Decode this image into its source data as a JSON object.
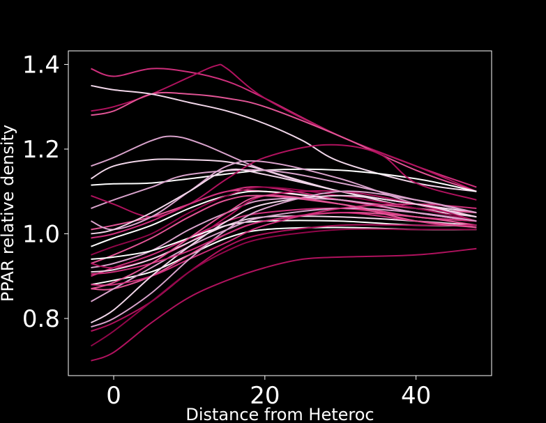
{
  "chart_data": {
    "type": "line",
    "title": "",
    "xlabel": "Distance from Heteroc",
    "ylabel": "PPAR relative density",
    "xlim": [
      -6,
      50
    ],
    "ylim": [
      0.665,
      1.432
    ],
    "xticks": [
      0,
      20,
      40
    ],
    "yticks": [
      0.8,
      1.0,
      1.2,
      1.4
    ],
    "xtick_labels": [
      "0",
      "20",
      "40"
    ],
    "ytick_labels": [
      "0.8",
      "1.0",
      "1.2",
      "1.4"
    ],
    "grid": false,
    "legend": "none",
    "colors": {
      "background": "#000000",
      "axes": "#ffffff",
      "text": "#ffffff",
      "palette": [
        "#ffffff",
        "#f2d7ea",
        "#d9a3cc",
        "#e25596",
        "#cf2f7c",
        "#b0125e",
        "#900649"
      ]
    },
    "series": [
      {
        "color": "#cf2f7c",
        "x": [
          -3,
          0,
          5,
          10,
          15,
          20,
          30,
          40,
          48
        ],
        "y": [
          1.39,
          1.372,
          1.39,
          1.382,
          1.36,
          1.32,
          1.23,
          1.16,
          1.11
        ]
      },
      {
        "color": "#b0125e",
        "x": [
          -3,
          0,
          5,
          10,
          13.5,
          15,
          20,
          30,
          40,
          48
        ],
        "y": [
          1.29,
          1.3,
          1.33,
          1.37,
          1.397,
          1.39,
          1.32,
          1.23,
          1.16,
          1.1
        ]
      },
      {
        "color": "#e25596",
        "x": [
          -3,
          0,
          5,
          10,
          15,
          20,
          30,
          40,
          48
        ],
        "y": [
          1.28,
          1.29,
          1.33,
          1.33,
          1.32,
          1.3,
          1.23,
          1.15,
          1.1
        ]
      },
      {
        "color": "#f2d7ea",
        "x": [
          -3,
          0,
          5,
          10,
          15,
          20,
          25,
          30,
          40,
          48
        ],
        "y": [
          1.35,
          1.34,
          1.33,
          1.31,
          1.29,
          1.26,
          1.22,
          1.17,
          1.12,
          1.1
        ]
      },
      {
        "color": "#d9a3cc",
        "x": [
          -3,
          0,
          5,
          8,
          12,
          20,
          30,
          40,
          48
        ],
        "y": [
          1.16,
          1.18,
          1.22,
          1.23,
          1.21,
          1.15,
          1.1,
          1.07,
          1.05
        ]
      },
      {
        "color": "#f2d7ea",
        "x": [
          -3,
          0,
          5,
          10,
          15,
          20,
          30,
          40,
          48
        ],
        "y": [
          1.13,
          1.16,
          1.175,
          1.175,
          1.17,
          1.15,
          1.1,
          1.07,
          1.05
        ]
      },
      {
        "color": "#ffffff",
        "x": [
          -3,
          0,
          5,
          10,
          20,
          30,
          40,
          48
        ],
        "y": [
          1.115,
          1.118,
          1.12,
          1.13,
          1.15,
          1.15,
          1.13,
          1.1
        ]
      },
      {
        "color": "#d9a3cc",
        "x": [
          -3,
          0,
          5,
          10,
          20,
          30,
          40,
          48
        ],
        "y": [
          1.06,
          1.08,
          1.11,
          1.14,
          1.15,
          1.12,
          1.08,
          1.05
        ]
      },
      {
        "color": "#b0125e",
        "x": [
          -3,
          0,
          5,
          10,
          15,
          20,
          28,
          35,
          40,
          48
        ],
        "y": [
          1.09,
          1.07,
          1.04,
          1.07,
          1.13,
          1.18,
          1.21,
          1.19,
          1.12,
          1.08
        ]
      },
      {
        "color": "#e25596",
        "x": [
          -3,
          0,
          5,
          10,
          15,
          20,
          30,
          40,
          48
        ],
        "y": [
          1.01,
          1.02,
          1.04,
          1.07,
          1.1,
          1.1,
          1.08,
          1.06,
          1.05
        ]
      },
      {
        "color": "#ffffff",
        "x": [
          -3,
          0,
          5,
          10,
          15,
          20,
          30,
          40,
          48
        ],
        "y": [
          0.97,
          0.99,
          1.02,
          1.06,
          1.09,
          1.1,
          1.08,
          1.05,
          1.03
        ]
      },
      {
        "color": "#d9a3cc",
        "x": [
          -3,
          0,
          5,
          10,
          15,
          20,
          30,
          40,
          48
        ],
        "y": [
          1.03,
          1.01,
          1.04,
          1.1,
          1.16,
          1.17,
          1.13,
          1.07,
          1.04
        ]
      },
      {
        "color": "#f2d7ea",
        "x": [
          -3,
          0,
          5,
          10,
          15,
          20,
          30,
          40,
          48
        ],
        "y": [
          1.0,
          1.01,
          1.05,
          1.1,
          1.15,
          1.14,
          1.1,
          1.06,
          1.04
        ]
      },
      {
        "color": "#cf2f7c",
        "x": [
          -3,
          0,
          5,
          10,
          15,
          20,
          30,
          40,
          48
        ],
        "y": [
          0.99,
          1.0,
          1.03,
          1.07,
          1.1,
          1.11,
          1.08,
          1.05,
          1.03
        ]
      },
      {
        "color": "#900649",
        "x": [
          -3,
          0,
          5,
          10,
          15,
          20,
          30,
          40,
          48
        ],
        "y": [
          0.95,
          0.97,
          1.0,
          1.05,
          1.09,
          1.11,
          1.09,
          1.06,
          1.03
        ]
      },
      {
        "color": "#e25596",
        "x": [
          -3,
          0,
          5,
          10,
          15,
          20,
          30,
          40,
          48
        ],
        "y": [
          0.93,
          0.95,
          0.99,
          1.04,
          1.08,
          1.09,
          1.07,
          1.04,
          1.03
        ]
      },
      {
        "color": "#d9a3cc",
        "x": [
          -3,
          0,
          5,
          10,
          15,
          20,
          30,
          40,
          48
        ],
        "y": [
          0.92,
          0.93,
          0.96,
          1.01,
          1.05,
          1.08,
          1.08,
          1.05,
          1.03
        ]
      },
      {
        "color": "#cf2f7c",
        "x": [
          -3,
          0,
          5,
          10,
          15,
          20,
          30,
          40,
          48
        ],
        "y": [
          0.9,
          0.92,
          0.95,
          0.99,
          1.03,
          1.05,
          1.06,
          1.04,
          1.03
        ]
      },
      {
        "color": "#b0125e",
        "x": [
          -3,
          0,
          5,
          10,
          15,
          20,
          30,
          40,
          48
        ],
        "y": [
          0.93,
          0.92,
          0.94,
          0.98,
          1.04,
          1.09,
          1.1,
          1.07,
          1.03
        ]
      },
      {
        "color": "#ffffff",
        "x": [
          -3,
          0,
          5,
          10,
          15,
          20,
          30,
          40,
          48
        ],
        "y": [
          0.94,
          0.945,
          0.96,
          0.99,
          1.02,
          1.03,
          1.03,
          1.02,
          1.02
        ]
      },
      {
        "color": "#f2d7ea",
        "x": [
          -3,
          0,
          5,
          10,
          15,
          20,
          30,
          40,
          48
        ],
        "y": [
          0.91,
          0.915,
          0.94,
          0.98,
          1.02,
          1.04,
          1.04,
          1.03,
          1.02
        ]
      },
      {
        "color": "#ffffff",
        "x": [
          -3,
          0,
          5,
          10,
          15,
          20,
          30,
          40,
          48
        ],
        "y": [
          0.88,
          0.89,
          0.91,
          0.95,
          0.99,
          1.01,
          1.015,
          1.01,
          1.01
        ]
      },
      {
        "color": "#e25596",
        "x": [
          -3,
          0,
          5,
          10,
          15,
          20,
          30,
          40,
          48
        ],
        "y": [
          0.87,
          0.87,
          0.9,
          0.95,
          1.0,
          1.03,
          1.05,
          1.04,
          1.02
        ]
      },
      {
        "color": "#d9a3cc",
        "x": [
          -3,
          0,
          5,
          10,
          15,
          20,
          30,
          40,
          48
        ],
        "y": [
          0.84,
          0.87,
          0.92,
          0.97,
          1.01,
          1.04,
          1.06,
          1.05,
          1.03
        ]
      },
      {
        "color": "#cf2f7c",
        "x": [
          -3,
          0,
          5,
          10,
          15,
          20,
          30,
          40,
          48
        ],
        "y": [
          0.88,
          0.88,
          0.9,
          0.94,
          0.98,
          1.02,
          1.06,
          1.07,
          1.06
        ]
      },
      {
        "color": "#f2d7ea",
        "x": [
          -3,
          0,
          5,
          10,
          15,
          20,
          30,
          40,
          48
        ],
        "y": [
          0.79,
          0.82,
          0.9,
          0.97,
          1.03,
          1.07,
          1.09,
          1.07,
          1.04
        ]
      },
      {
        "color": "#d9a3cc",
        "x": [
          -3,
          0,
          5,
          10,
          15,
          20,
          30,
          40,
          48
        ],
        "y": [
          0.78,
          0.8,
          0.86,
          0.94,
          1.01,
          1.06,
          1.1,
          1.08,
          1.05
        ]
      },
      {
        "color": "#b0125e",
        "x": [
          -3,
          0,
          5,
          10,
          15,
          20,
          30,
          40,
          48
        ],
        "y": [
          0.77,
          0.79,
          0.84,
          0.91,
          0.97,
          1.0,
          1.02,
          1.02,
          1.02
        ]
      },
      {
        "color": "#900649",
        "x": [
          -3,
          0,
          5,
          10,
          15,
          20,
          30,
          40,
          48
        ],
        "y": [
          0.735,
          0.77,
          0.84,
          0.91,
          0.96,
          0.99,
          1.01,
          1.01,
          1.01
        ]
      },
      {
        "color": "#b0125e",
        "x": [
          -3,
          0,
          5,
          10,
          15,
          20,
          25,
          30,
          40,
          48
        ],
        "y": [
          0.7,
          0.72,
          0.79,
          0.85,
          0.89,
          0.92,
          0.94,
          0.945,
          0.95,
          0.965
        ]
      },
      {
        "color": "#cf2f7c",
        "x": [
          -3,
          0,
          5,
          10,
          15,
          20,
          30,
          40,
          48
        ],
        "y": [
          0.905,
          0.91,
          0.93,
          0.96,
          1.0,
          1.03,
          1.05,
          1.03,
          1.015
        ]
      },
      {
        "color": "#e25596",
        "x": [
          -3,
          0,
          5,
          10,
          15,
          20,
          30,
          40,
          48
        ],
        "y": [
          0.87,
          0.885,
          0.93,
          0.99,
          1.05,
          1.09,
          1.07,
          1.03,
          1.015
        ]
      }
    ]
  }
}
